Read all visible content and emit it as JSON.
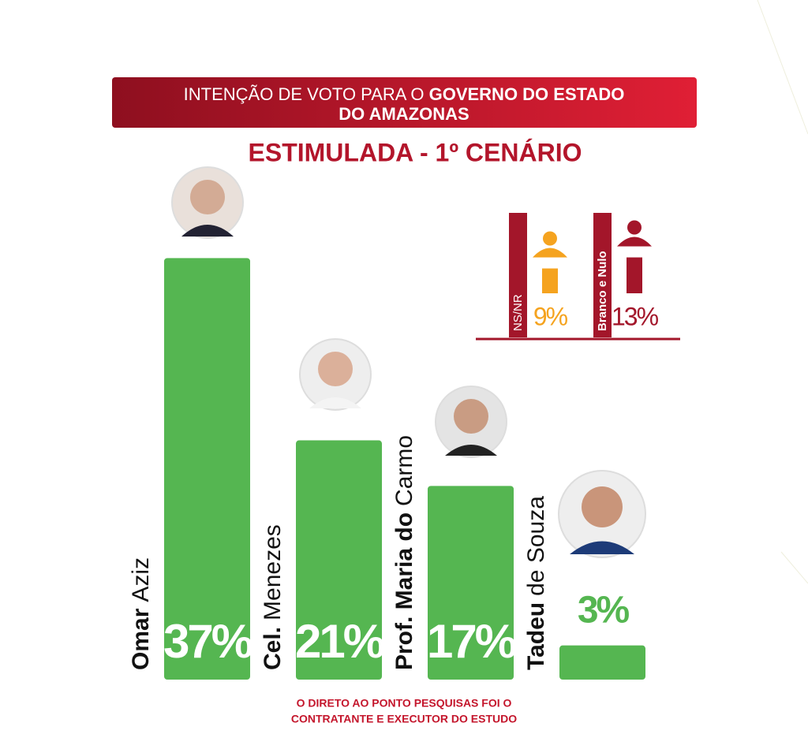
{
  "chart_data": {
    "type": "bar",
    "title_parts": [
      "INTENÇÃO DE VOTO PARA O",
      "GOVERNO DO ESTADO",
      "DO AMAZONAS"
    ],
    "subtitle": "ESTIMULADA - 1º CENÁRIO",
    "categories": [
      {
        "bold": "Omar",
        "rest": "Aziz"
      },
      {
        "bold": "Cel.",
        "rest": "Menezes"
      },
      {
        "bold": "Prof. Maria do",
        "rest": "Carmo"
      },
      {
        "bold": "Tadeu",
        "rest": "de Souza"
      }
    ],
    "values": [
      37,
      21,
      17,
      3
    ],
    "value_labels": [
      "37%",
      "21%",
      "17%",
      "3%"
    ],
    "color": "#55b651",
    "ylim": [
      0,
      40
    ],
    "others": [
      {
        "name": "NS/NR",
        "value": 9,
        "value_label": "9%",
        "color": "#f5a31f"
      },
      {
        "name": "Branco e Nulo",
        "value": 13,
        "value_label": "13%",
        "color": "#a3162a"
      }
    ],
    "footnote": [
      "O DIRETO AO PONTO PESQUISAS FOI O",
      "CONTRATANTE E EXECUTOR DO ESTUDO"
    ]
  }
}
